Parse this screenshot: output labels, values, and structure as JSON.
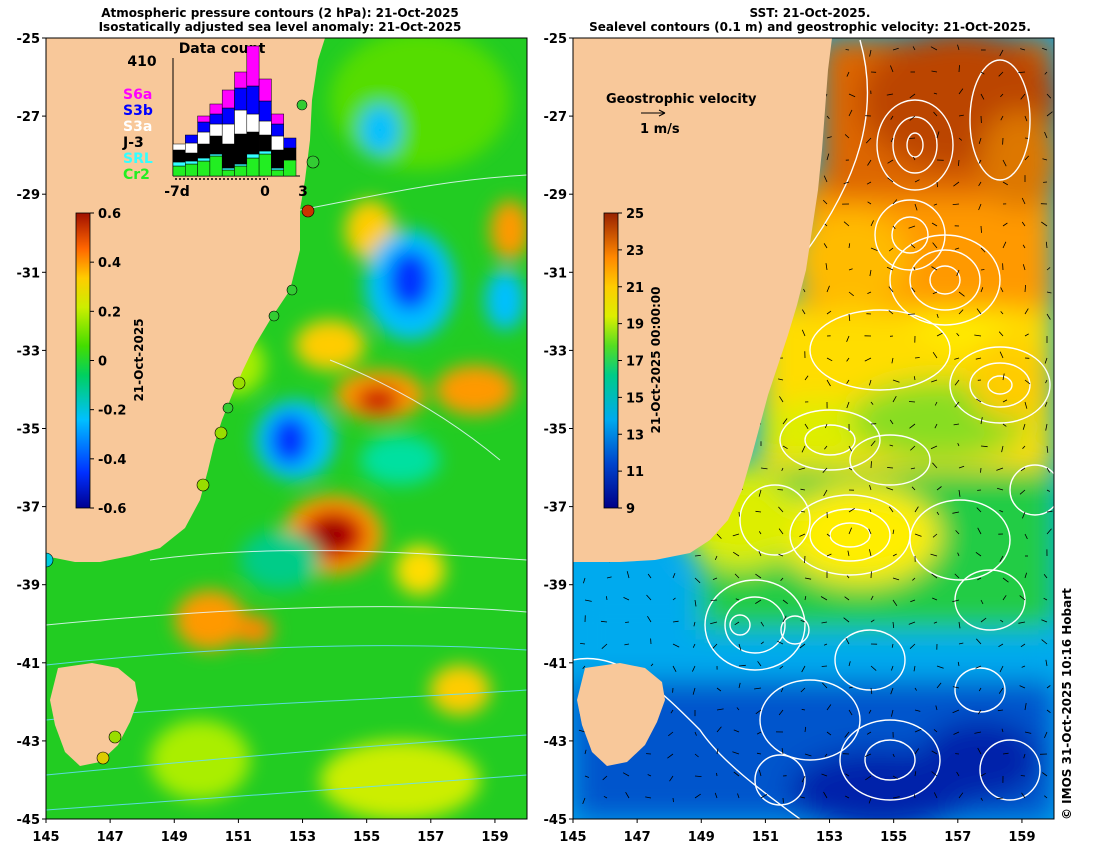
{
  "left_panel": {
    "title_line1": "Atmospheric pressure contours (2 hPa): 21-Oct-2025",
    "title_line2": "Isostatically adjusted sea level anomaly: 21-Oct-2025",
    "colorbar": {
      "ticks": [
        "0.6",
        "0.4",
        "0.2",
        "0",
        "-0.2",
        "-0.4",
        "-0.6"
      ],
      "date_label": "21-Oct-2025"
    },
    "data_count": {
      "title": "Data count",
      "max_label": "410",
      "x_labels": [
        "-7d",
        "0",
        "3"
      ],
      "legend": [
        {
          "label": "S6a",
          "color": "#ff00ff"
        },
        {
          "label": "S3b",
          "color": "#0000ff"
        },
        {
          "label": "S3a",
          "color": "#ffffff"
        },
        {
          "label": "J-3",
          "color": "#000000"
        },
        {
          "label": "SRL",
          "color": "#33ffff"
        },
        {
          "label": "Cr2",
          "color": "#22ee22"
        }
      ]
    }
  },
  "right_panel": {
    "title_line1": "SST: 21-Oct-2025.",
    "title_line2": "Sealevel contours (0.1 m) and geostrophic velocity: 21-Oct-2025.",
    "velocity_legend": {
      "title": "Geostrophic velocity",
      "scale_label": "1 m/s"
    },
    "colorbar": {
      "ticks": [
        "25",
        "23",
        "21",
        "19",
        "17",
        "15",
        "13",
        "11",
        "9"
      ],
      "date_label": "21-Oct-2025 00:00:00"
    }
  },
  "axes": {
    "y_ticks": [
      "-25",
      "-27",
      "-29",
      "-31",
      "-33",
      "-35",
      "-37",
      "-39",
      "-41",
      "-43",
      "-45"
    ],
    "x_ticks": [
      "145",
      "147",
      "149",
      "151",
      "153",
      "155",
      "157",
      "159"
    ]
  },
  "credit": "© IMOS 31-Oct-2025 10:16 Hobart",
  "colors": {
    "land": "#f8c89a",
    "sla_ramp": [
      "#000090",
      "#0030ff",
      "#00c0ff",
      "#00e040",
      "#22dd22",
      "#aaff00",
      "#ffcc00",
      "#ff7000",
      "#c00000",
      "#800000"
    ],
    "sst_ramp": [
      "#000088",
      "#0044cc",
      "#00aaee",
      "#00cc88",
      "#22cc22",
      "#ccee00",
      "#ffee00",
      "#ff9900",
      "#cc3300",
      "#992200"
    ]
  }
}
